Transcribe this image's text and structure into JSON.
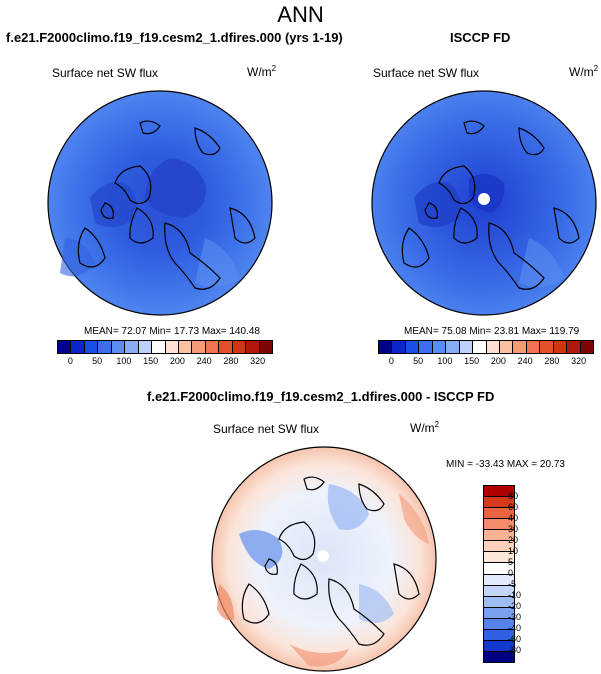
{
  "title": "ANN",
  "panels": {
    "model": {
      "title": "f.e21.F2000climo.f19_f19.cesm2_1.dfires.000 (yrs 1-19)",
      "variable": "Surface net SW flux",
      "units": "W/m",
      "units_exp": "2",
      "stats": "MEAN= 72.07  Min= 17.73  Max= 140.48"
    },
    "obs": {
      "title": "ISCCP FD",
      "variable": "Surface net SW flux",
      "units": "W/m",
      "units_exp": "2",
      "stats": "MEAN= 75.08  Min= 23.81  Max= 119.79"
    },
    "diff": {
      "title": "f.e21.F2000climo.f19_f19.cesm2_1.dfires.000 - ISCCP FD",
      "variable": "Surface net SW flux",
      "units": "W/m",
      "units_exp": "2",
      "stats": "MIN = -33.43 MAX =  20.73"
    }
  },
  "colorbar_abs": {
    "colors": [
      "#00008b",
      "#0a26c8",
      "#1a4fe6",
      "#3b6ff0",
      "#5a8df2",
      "#86acf5",
      "#bcd2fa",
      "#ffffff",
      "#fde0cf",
      "#f9c0a2",
      "#f59b78",
      "#ef7452",
      "#e4502e",
      "#cf3414",
      "#b0180a",
      "#7d0505"
    ],
    "labels": [
      "0",
      "50",
      "100",
      "150",
      "200",
      "240",
      "280",
      "320"
    ]
  },
  "colorbar_diff": {
    "colors": [
      "#b00000",
      "#d43a1c",
      "#ea6440",
      "#f38c6a",
      "#f8b393",
      "#fbd1bb",
      "#fde6da",
      "#ffffff",
      "#e2ebfb",
      "#c3d6f8",
      "#9ebdf3",
      "#7aa1ef",
      "#5683ea",
      "#3060e2",
      "#1338cc",
      "#000082"
    ],
    "labels": [
      "80",
      "60",
      "40",
      "30",
      "20",
      "10",
      "5",
      "0",
      "-5",
      "-10",
      "-20",
      "-30",
      "-40",
      "-60",
      "-80"
    ]
  }
}
